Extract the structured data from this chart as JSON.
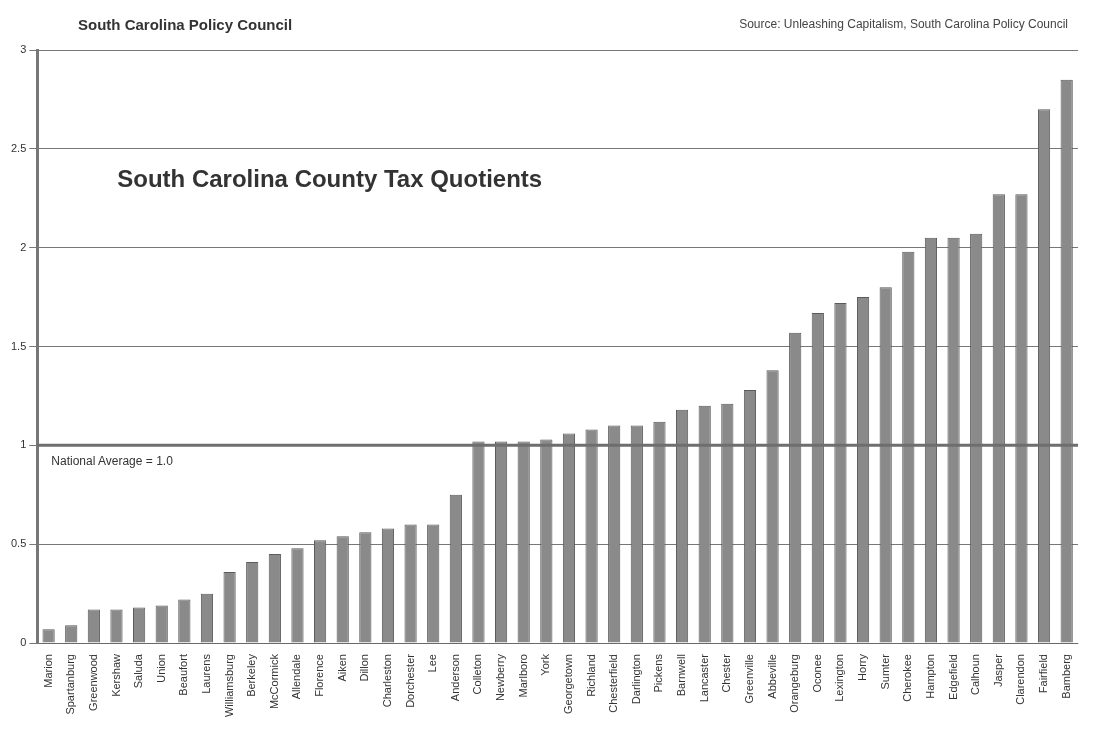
{
  "chart_data": {
    "type": "bar",
    "title": "South Carolina County Tax Quotients",
    "annotations": [
      "South Carolina Policy Council",
      "Source: Unleashing Capitalism, South Carolina Policy Council"
    ],
    "categories": [
      "Marion",
      "Spartanburg",
      "Greenwood",
      "Kershaw",
      "Saluda",
      "Union",
      "Beaufort",
      "Laurens",
      "Williamsburg",
      "Berkeley",
      "McCormick",
      "Allendale",
      "Florence",
      "Aiken",
      "Dillon",
      "Charleston",
      "Dorchester",
      "Lee",
      "Anderson",
      "Colleton",
      "Newberry",
      "Marlboro",
      "York",
      "Georgetown",
      "Richland",
      "Chesterfield",
      "Darlington",
      "Pickens",
      "Barnwell",
      "Lancaster",
      "Chester",
      "Greenville",
      "Abbeville",
      "Orangeburg",
      "Oconee",
      "Lexington",
      "Horry",
      "Sumter",
      "Cherokee",
      "Hampton",
      "Edgefield",
      "Calhoun",
      "Jasper",
      "Clarendon",
      "Fairfield",
      "Bamberg"
    ],
    "values": [
      0.07,
      0.09,
      0.17,
      0.17,
      0.18,
      0.19,
      0.22,
      0.25,
      0.36,
      0.41,
      0.45,
      0.48,
      0.52,
      0.54,
      0.56,
      0.58,
      0.6,
      0.6,
      0.75,
      1.02,
      1.02,
      1.02,
      1.03,
      1.06,
      1.08,
      1.1,
      1.1,
      1.12,
      1.18,
      1.2,
      1.21,
      1.28,
      1.38,
      1.57,
      1.67,
      1.72,
      1.75,
      1.8,
      1.98,
      2.05,
      2.05,
      2.07,
      2.27,
      2.27,
      2.7,
      2.85
    ],
    "color": "#8a8a8a",
    "ylim": [
      0,
      3
    ],
    "yticks": [
      0,
      0.5,
      1,
      1.5,
      2,
      2.5,
      3
    ],
    "grid": "y",
    "ref_lines": [
      {
        "axis": "y",
        "value": 1,
        "label": "National Average = 1.0",
        "color": "#6e6e6e"
      }
    ]
  }
}
